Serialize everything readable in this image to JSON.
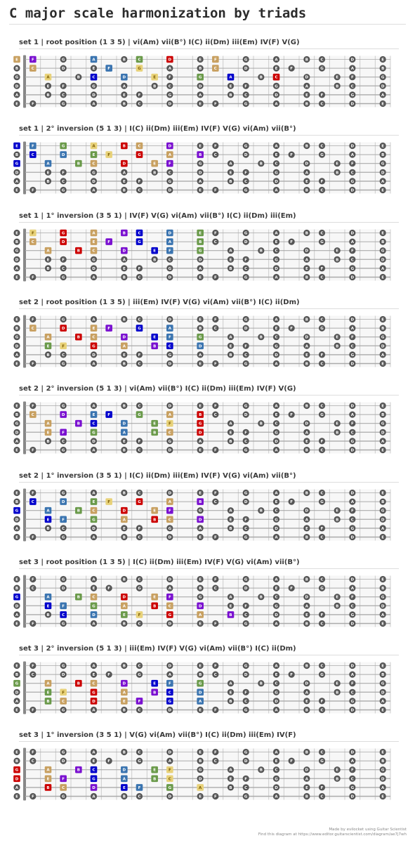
{
  "title": "C major scale harmonization by triads",
  "string_names": [
    "E",
    "B",
    "G",
    "D",
    "A",
    "E"
  ],
  "marker_fret_labels": [
    "3",
    "5",
    "7",
    "9",
    "12",
    "15",
    "17",
    "19",
    "21",
    "24"
  ],
  "colors": {
    "C": "#0000cc",
    "D": "#7a10d0",
    "E": "#3a74b0",
    "F": "#e8d27a",
    "G": "#6a9a4a",
    "A": "#c8a060",
    "B": "#cc0000",
    "gray": "#555555",
    "fretboard_bg": "#f7f7f7"
  },
  "diagrams": [
    {
      "title": "set 1 | root position (1 3 5) | vi(Am) vii(B°) I(C) ii(Dm) iii(Em) IV(F) V(G)",
      "colored": {
        "0": [
          [
            0,
            "A"
          ],
          [
            1,
            "D"
          ],
          [
            5,
            "E"
          ],
          [
            8,
            "G"
          ],
          [
            10,
            "B"
          ],
          [
            13,
            "A"
          ],
          [
            16,
            "B"
          ]
        ],
        "1": [
          [
            1,
            "A"
          ],
          [
            6,
            "E"
          ],
          [
            8,
            "F"
          ],
          [
            11,
            "G"
          ],
          [
            13,
            "A"
          ],
          [
            16,
            "B"
          ]
        ],
        "2": [
          [
            2,
            "F"
          ],
          [
            5,
            "C"
          ],
          [
            7,
            "E"
          ],
          [
            9,
            "F"
          ],
          [
            12,
            "G"
          ],
          [
            14,
            "C"
          ],
          [
            17,
            "B"
          ]
        ],
        "3": [],
        "4": [],
        "5": []
      }
    },
    {
      "title": "set 1 | 2° inversion (5 1 3) | I(C) ii(Dm) iii(Em) IV(F) V(G) vi(Am) vii(B°)",
      "colored": {
        "0": [
          [
            0,
            "C"
          ],
          [
            1,
            "E"
          ],
          [
            3,
            "G"
          ],
          [
            5,
            "F"
          ],
          [
            7,
            "B"
          ],
          [
            8,
            "A"
          ],
          [
            10,
            "D"
          ]
        ],
        "1": [
          [
            1,
            "C"
          ],
          [
            3,
            "E"
          ],
          [
            5,
            "G"
          ],
          [
            6,
            "F"
          ],
          [
            8,
            "B"
          ],
          [
            10,
            "A"
          ],
          [
            12,
            "D"
          ]
        ],
        "2": [
          [
            0,
            "C"
          ],
          [
            2,
            "E"
          ],
          [
            4,
            "G"
          ],
          [
            5,
            "A"
          ],
          [
            7,
            "B"
          ],
          [
            9,
            "A"
          ],
          [
            10,
            "D"
          ]
        ],
        "3": [],
        "4": [],
        "5": []
      }
    },
    {
      "title": "set 1 | 1° inversion (3 5 1) | IV(F) V(G) vi(Am) vii(B°) I(C) ii(Dm) iii(Em)",
      "colored": {
        "0": [
          [
            1,
            "F"
          ],
          [
            3,
            "B"
          ],
          [
            5,
            "A"
          ],
          [
            7,
            "D"
          ],
          [
            8,
            "C"
          ],
          [
            10,
            "E"
          ],
          [
            12,
            "G"
          ]
        ],
        "1": [
          [
            1,
            "A"
          ],
          [
            3,
            "B"
          ],
          [
            5,
            "A"
          ],
          [
            6,
            "D"
          ],
          [
            8,
            "C"
          ],
          [
            10,
            "E"
          ],
          [
            12,
            "G"
          ]
        ],
        "2": [
          [
            2,
            "A"
          ],
          [
            4,
            "B"
          ],
          [
            5,
            "A"
          ],
          [
            7,
            "D"
          ],
          [
            9,
            "C"
          ],
          [
            10,
            "E"
          ],
          [
            12,
            "G"
          ]
        ],
        "3": [],
        "4": [],
        "5": []
      }
    },
    {
      "title": "set 2 | root position (1 3 5) | iii(Em) IV(F) V(G) vi(Am) vii(B°) I(C) ii(Dm)",
      "colored": {
        "0": [],
        "1": [
          [
            1,
            "A"
          ],
          [
            3,
            "B"
          ],
          [
            5,
            "A"
          ],
          [
            6,
            "D"
          ],
          [
            8,
            "C"
          ],
          [
            10,
            "E"
          ]
        ],
        "2": [
          [
            2,
            "A"
          ],
          [
            4,
            "B"
          ],
          [
            5,
            "A"
          ],
          [
            7,
            "D"
          ],
          [
            9,
            "C"
          ],
          [
            10,
            "E"
          ],
          [
            12,
            "G"
          ]
        ],
        "3": [
          [
            2,
            "G"
          ],
          [
            3,
            "F"
          ],
          [
            5,
            "B"
          ],
          [
            7,
            "A"
          ],
          [
            9,
            "D"
          ],
          [
            10,
            "C"
          ],
          [
            12,
            "E"
          ]
        ],
        "4": [],
        "5": []
      }
    },
    {
      "title": "set 2 | 2° inversion (5 1 3) | vi(Am) vii(B°) I(C) ii(Dm) iii(Em) IV(F) V(G)",
      "colored": {
        "0": [],
        "1": [
          [
            1,
            "A"
          ],
          [
            3,
            "D"
          ],
          [
            5,
            "E"
          ],
          [
            6,
            "C"
          ],
          [
            8,
            "G"
          ],
          [
            10,
            "A"
          ],
          [
            12,
            "B"
          ]
        ],
        "2": [
          [
            2,
            "A"
          ],
          [
            4,
            "D"
          ],
          [
            5,
            "C"
          ],
          [
            7,
            "E"
          ],
          [
            9,
            "G"
          ],
          [
            10,
            "F"
          ],
          [
            12,
            "B"
          ]
        ],
        "3": [
          [
            2,
            "A"
          ],
          [
            3,
            "D"
          ],
          [
            5,
            "G"
          ],
          [
            7,
            "E"
          ],
          [
            9,
            "G"
          ],
          [
            10,
            "A"
          ],
          [
            12,
            "B"
          ]
        ],
        "4": [],
        "5": []
      }
    },
    {
      "title": "set 2 | 1° inversion (3 5 1) | I(C) ii(Dm) iii(Em) IV(F) V(G) vi(Am) vii(B°)",
      "colored": {
        "0": [],
        "1": [
          [
            1,
            "C"
          ],
          [
            3,
            "E"
          ],
          [
            5,
            "G"
          ],
          [
            6,
            "F"
          ],
          [
            8,
            "B"
          ],
          [
            10,
            "A"
          ],
          [
            12,
            "D"
          ]
        ],
        "2": [
          [
            0,
            "C"
          ],
          [
            2,
            "E"
          ],
          [
            4,
            "G"
          ],
          [
            5,
            "A"
          ],
          [
            7,
            "B"
          ],
          [
            9,
            "A"
          ],
          [
            10,
            "D"
          ]
        ],
        "3": [
          [
            2,
            "C"
          ],
          [
            3,
            "E"
          ],
          [
            5,
            "G"
          ],
          [
            7,
            "A"
          ],
          [
            9,
            "B"
          ],
          [
            10,
            "A"
          ],
          [
            12,
            "D"
          ]
        ],
        "4": [],
        "5": []
      }
    },
    {
      "title": "set 3 | root position (1 3 5) | I(C) ii(Dm) iii(Em) IV(F) V(G) vi(Am) vii(B°)",
      "colored": {
        "0": [],
        "1": [],
        "2": [
          [
            0,
            "C"
          ],
          [
            2,
            "E"
          ],
          [
            4,
            "G"
          ],
          [
            5,
            "A"
          ],
          [
            7,
            "B"
          ],
          [
            9,
            "A"
          ],
          [
            10,
            "D"
          ]
        ],
        "3": [
          [
            2,
            "C"
          ],
          [
            3,
            "E"
          ],
          [
            5,
            "G"
          ],
          [
            7,
            "A"
          ],
          [
            9,
            "B"
          ],
          [
            10,
            "A"
          ],
          [
            12,
            "D"
          ]
        ],
        "4": [
          [
            3,
            "C"
          ],
          [
            5,
            "E"
          ],
          [
            7,
            "G"
          ],
          [
            8,
            "F"
          ],
          [
            10,
            "B"
          ],
          [
            12,
            "A"
          ],
          [
            14,
            "D"
          ]
        ],
        "5": []
      }
    },
    {
      "title": "set 3 | 2° inversion (5 1 3) | iii(Em) IV(F) V(G) vi(Am) vii(B°) I(C) ii(Dm)",
      "colored": {
        "0": [],
        "1": [],
        "2": [
          [
            0,
            "G"
          ],
          [
            2,
            "A"
          ],
          [
            4,
            "B"
          ],
          [
            5,
            "A"
          ],
          [
            7,
            "D"
          ],
          [
            9,
            "C"
          ],
          [
            10,
            "E"
          ],
          [
            12,
            "G"
          ]
        ],
        "3": [
          [
            2,
            "G"
          ],
          [
            3,
            "F"
          ],
          [
            5,
            "B"
          ],
          [
            7,
            "A"
          ],
          [
            9,
            "D"
          ],
          [
            10,
            "C"
          ],
          [
            12,
            "E"
          ]
        ],
        "4": [
          [
            2,
            "G"
          ],
          [
            3,
            "A"
          ],
          [
            5,
            "B"
          ],
          [
            7,
            "A"
          ],
          [
            8,
            "D"
          ],
          [
            10,
            "C"
          ],
          [
            12,
            "E"
          ]
        ],
        "5": []
      }
    },
    {
      "title": "set 3 | 1° inversion (3 5 1) | V(G) vi(Am) vii(B°) I(C) ii(Dm) iii(Em) IV(F)",
      "colored": {
        "0": [],
        "1": [],
        "2": [
          [
            0,
            "B"
          ],
          [
            2,
            "A"
          ],
          [
            4,
            "D"
          ],
          [
            5,
            "C"
          ],
          [
            7,
            "E"
          ],
          [
            9,
            "G"
          ],
          [
            10,
            "F"
          ]
        ],
        "3": [
          [
            0,
            "B"
          ],
          [
            2,
            "A"
          ],
          [
            3,
            "D"
          ],
          [
            5,
            "C"
          ],
          [
            7,
            "E"
          ],
          [
            9,
            "G"
          ],
          [
            10,
            "F"
          ]
        ],
        "4": [
          [
            2,
            "B"
          ],
          [
            3,
            "A"
          ],
          [
            5,
            "D"
          ],
          [
            7,
            "C"
          ],
          [
            8,
            "E"
          ],
          [
            10,
            "G"
          ],
          [
            12,
            "F"
          ]
        ],
        "5": []
      }
    }
  ],
  "footer": {
    "line1": "Made by evilocket using Guitar Scientist",
    "line2": "Find this diagram at https://www.editor.guitarscientist.com/diagram/ae7j7wh"
  }
}
